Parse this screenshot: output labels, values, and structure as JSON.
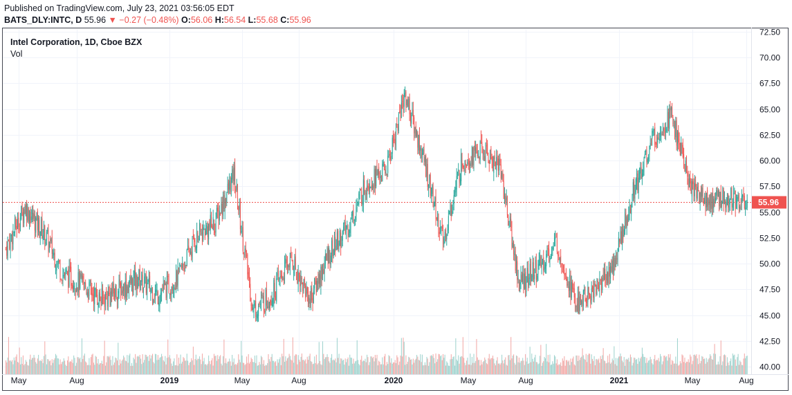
{
  "header": {
    "published": "Published on TradingView.com, July 23, 2021 03:56:05 EDT",
    "symbol": "BATS_DLY:INTC, D",
    "last": "55.96",
    "arrow": "▼",
    "change": "−0.27 (−0.48%)",
    "o_label": "O:",
    "o_value": "56.06",
    "h_label": "H:",
    "h_value": "56.54",
    "l_label": "L:",
    "l_value": "55.68",
    "c_label": "C:",
    "c_value": "55.96"
  },
  "legend": {
    "title": "Intel Corporation, 1D, Cboe BZX",
    "volume_label": "Vol"
  },
  "colors": {
    "up": "#26a69a",
    "down": "#ef5350",
    "vol_up": "#9fd3ce",
    "vol_down": "#f2a9a7",
    "grid": "#f0f3fa",
    "price_line": "#ef5350"
  },
  "chart_data": {
    "type": "candlestick",
    "title": "Intel Corporation, 1D, Cboe BZX",
    "ylim": [
      39.5,
      72.9
    ],
    "y_ticks": [
      "40.00",
      "42.50",
      "45.00",
      "47.50",
      "50.00",
      "52.50",
      "55.00",
      "57.50",
      "60.00",
      "62.50",
      "65.00",
      "67.50",
      "70.00",
      "72.50"
    ],
    "x_ticks": [
      {
        "label": "May",
        "bold": false
      },
      {
        "label": "Aug",
        "bold": false
      },
      {
        "label": "2019",
        "bold": true
      },
      {
        "label": "May",
        "bold": false
      },
      {
        "label": "Aug",
        "bold": false
      },
      {
        "label": "2020",
        "bold": true
      },
      {
        "label": "May",
        "bold": false
      },
      {
        "label": "Aug",
        "bold": false
      },
      {
        "label": "2021",
        "bold": true
      },
      {
        "label": "May",
        "bold": false
      },
      {
        "label": "Aug",
        "bold": false
      }
    ],
    "last_price": "55.96",
    "series": [
      {
        "name": "close",
        "x": [
          "2018-04",
          "2018-05",
          "2018-06",
          "2018-07",
          "2018-08",
          "2018-09",
          "2018-10",
          "2018-11",
          "2018-12",
          "2019-01",
          "2019-02",
          "2019-03",
          "2019-04",
          "2019-05",
          "2019-06",
          "2019-07",
          "2019-08",
          "2019-09",
          "2019-10",
          "2019-11",
          "2019-12",
          "2020-01",
          "2020-02",
          "2020-03",
          "2020-04",
          "2020-05",
          "2020-06",
          "2020-07",
          "2020-08",
          "2020-09",
          "2020-10",
          "2020-11",
          "2020-12",
          "2021-01",
          "2021-02",
          "2021-03",
          "2021-04",
          "2021-05",
          "2021-06",
          "2021-07"
        ],
        "values": [
          51.5,
          55.5,
          53.0,
          49.0,
          48.0,
          46.5,
          47.5,
          48.5,
          47.0,
          48.5,
          52.5,
          54.0,
          58.5,
          45.5,
          47.0,
          50.5,
          46.5,
          51.0,
          53.5,
          58.0,
          59.0,
          66.5,
          60.0,
          52.0,
          60.0,
          61.0,
          59.5,
          48.0,
          49.5,
          52.0,
          46.0,
          47.5,
          50.0,
          57.0,
          62.0,
          64.5,
          57.5,
          56.0,
          56.5,
          55.96
        ]
      }
    ]
  }
}
